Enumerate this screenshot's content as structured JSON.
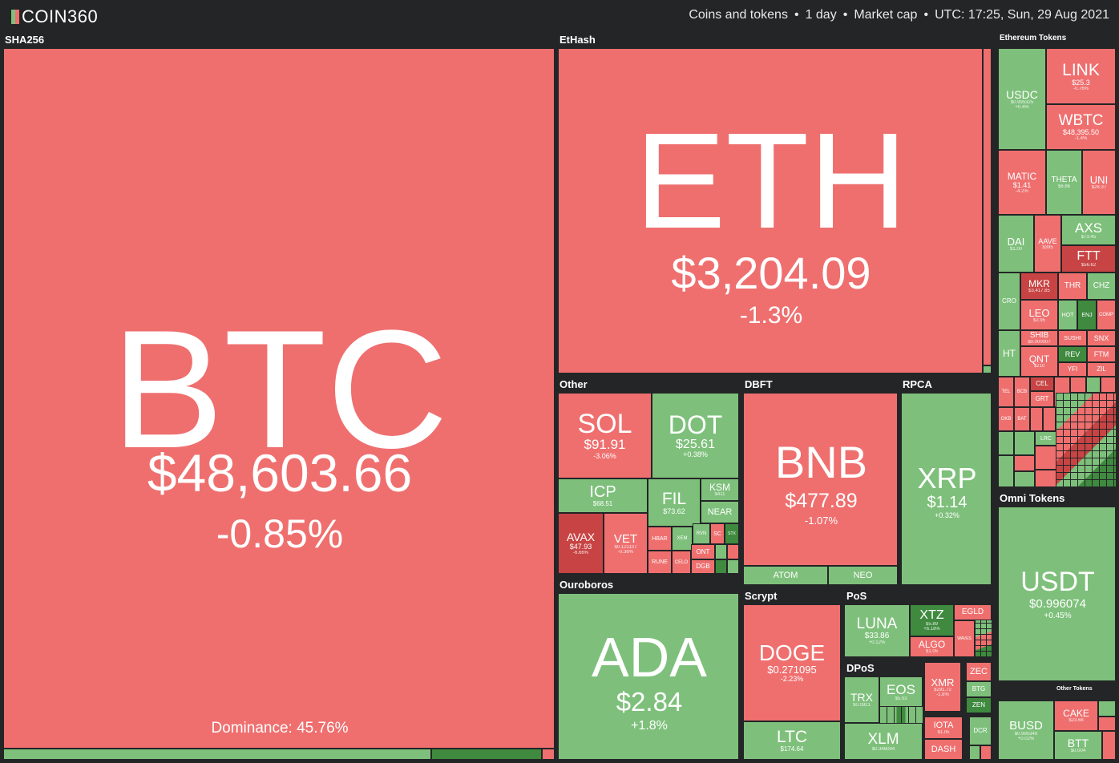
{
  "app": {
    "logo": "COIN360",
    "filters": {
      "coins": "Coins and tokens",
      "period": "1 day",
      "metric": "Market cap",
      "time": "UTC: 17:25, Sun, 29 Aug 2021"
    }
  },
  "colors": {
    "down": "#ef6f6f",
    "up": "#7ec07b",
    "down_strong": "#c84444",
    "up_strong": "#3f8a3f",
    "background": "#232526"
  },
  "groups": {
    "sha256": "SHA256",
    "ethash": "EtHash",
    "eth_tokens": "Ethereum Tokens",
    "other": "Other",
    "dbft": "DBFT",
    "rpca": "RPCA",
    "omni": "Omni Tokens",
    "ouroboros": "Ouroboros",
    "scrypt": "Scrypt",
    "pos": "PoS",
    "dpos": "DPoS",
    "other_tokens": "Other Tokens"
  },
  "coins": {
    "btc": {
      "symbol": "BTC",
      "price": "$48,603.66",
      "change": "-0.85%",
      "dominance": "Dominance: 45.76%"
    },
    "eth": {
      "symbol": "ETH",
      "price": "$3,204.09",
      "change": "-1.3%"
    },
    "sol": {
      "symbol": "SOL",
      "price": "$91.91",
      "change": "-3.06%"
    },
    "dot": {
      "symbol": "DOT",
      "price": "$25.61",
      "change": "+0.38%"
    },
    "icp": {
      "symbol": "ICP",
      "price": "$68.51"
    },
    "fil": {
      "symbol": "FIL",
      "price": "$73.62"
    },
    "ksm": {
      "symbol": "KSM",
      "price": "$411"
    },
    "near": {
      "symbol": "NEAR"
    },
    "avax": {
      "symbol": "AVAX",
      "price": "$47.93",
      "change": "-6.66%"
    },
    "vet": {
      "symbol": "VET",
      "price": "$0.121107",
      "change": "-0.36%"
    },
    "hbar": {
      "symbol": "HBAR"
    },
    "egld_o": {
      "symbol": "XEM"
    },
    "rvn": {
      "symbol": "RVN"
    },
    "sc": {
      "symbol": "SC"
    },
    "stx": {
      "symbol": "STX"
    },
    "rune": {
      "symbol": "RUNE"
    },
    "celo": {
      "symbol": "CELO"
    },
    "ont": {
      "symbol": "ONT"
    },
    "dgb": {
      "symbol": "DGB"
    },
    "bnb": {
      "symbol": "BNB",
      "price": "$477.89",
      "change": "-1.07%"
    },
    "atom": {
      "symbol": "ATOM"
    },
    "neo": {
      "symbol": "NEO"
    },
    "xrp": {
      "symbol": "XRP",
      "price": "$1.14",
      "change": "+0.32%"
    },
    "ada": {
      "symbol": "ADA",
      "price": "$2.84",
      "change": "+1.8%"
    },
    "doge": {
      "symbol": "DOGE",
      "price": "$0.271095",
      "change": "-2.23%"
    },
    "ltc": {
      "symbol": "LTC",
      "price": "$174.64"
    },
    "luna": {
      "symbol": "LUNA",
      "price": "$33.86",
      "change": "+0.12%"
    },
    "xtz": {
      "symbol": "XTZ",
      "price": "$5.89",
      "change": "+6.18%"
    },
    "egld": {
      "symbol": "EGLD"
    },
    "algo": {
      "symbol": "ALGO",
      "price": "$1.05"
    },
    "waves": {
      "symbol": "WAVES"
    },
    "trx": {
      "symbol": "TRX",
      "price": "$0.0921"
    },
    "eos": {
      "symbol": "EOS",
      "price": "$5.03"
    },
    "xlm": {
      "symbol": "XLM",
      "price": "$0.348094"
    },
    "xmr": {
      "symbol": "XMR",
      "price": "$291.72",
      "change": "-1.8%"
    },
    "zec": {
      "symbol": "ZEC"
    },
    "btg": {
      "symbol": "BTG"
    },
    "zen": {
      "symbol": "ZEN"
    },
    "iota": {
      "symbol": "IOTA",
      "price": "$1.05"
    },
    "dash": {
      "symbol": "DASH"
    },
    "dcr": {
      "symbol": "DCR"
    },
    "usdt": {
      "symbol": "USDT",
      "price": "$0.996074",
      "change": "+0.45%"
    },
    "busd": {
      "symbol": "BUSD",
      "price": "$0.995349",
      "change": "+0.02%"
    },
    "cake": {
      "symbol": "CAKE",
      "price": "$23.68"
    },
    "btt": {
      "symbol": "BTT",
      "price": "$0.004"
    }
  },
  "eth_tokens": {
    "usdc": {
      "symbol": "USDC",
      "price": "$0.995325",
      "change": "+0.4%"
    },
    "link": {
      "symbol": "LINK",
      "price": "$25.3",
      "change": "-0.76%"
    },
    "wbtc": {
      "symbol": "WBTC",
      "price": "$48,395.50",
      "change": "-1.4%"
    },
    "matic": {
      "symbol": "MATIC",
      "price": "$1.41",
      "change": "-4.2%"
    },
    "theta": {
      "symbol": "THETA",
      "price": "$6.86"
    },
    "uni": {
      "symbol": "UNI",
      "price": "$26.37"
    },
    "dai": {
      "symbol": "DAI",
      "price": "$1.00"
    },
    "aave": {
      "symbol": "AAVE",
      "price": "$395"
    },
    "axs": {
      "symbol": "AXS",
      "price": "$73.45"
    },
    "ftt": {
      "symbol": "FTT",
      "price": "$56.62"
    },
    "cro": {
      "symbol": "CRO"
    },
    "mkr": {
      "symbol": "MKR",
      "price": "$3,417.85"
    },
    "thr": {
      "symbol": "THR"
    },
    "chz": {
      "symbol": "CHZ"
    },
    "leo": {
      "symbol": "LEO",
      "price": "$2.95"
    },
    "hot": {
      "symbol": "HOT"
    },
    "enj": {
      "symbol": "ENJ"
    },
    "comp": {
      "symbol": "COMP"
    },
    "ht": {
      "symbol": "HT"
    },
    "shib": {
      "symbol": "SHIB",
      "price": "$0.000007"
    },
    "sushi": {
      "symbol": "SUSHI"
    },
    "snx": {
      "symbol": "SNX"
    },
    "rev": {
      "symbol": "REV"
    },
    "ftm": {
      "symbol": "FTM"
    },
    "qnt": {
      "symbol": "QNT",
      "price": "$210"
    },
    "yfi": {
      "symbol": "YFI"
    },
    "zil": {
      "symbol": "ZIL"
    },
    "tel": {
      "symbol": "TEL"
    },
    "bcb": {
      "symbol": "BCB"
    },
    "cel": {
      "symbol": "CEL"
    },
    "grt": {
      "symbol": "GRT"
    },
    "okb": {
      "symbol": "OKB"
    },
    "bat": {
      "symbol": "BAT"
    },
    "lrc": {
      "symbol": "LRC"
    }
  }
}
